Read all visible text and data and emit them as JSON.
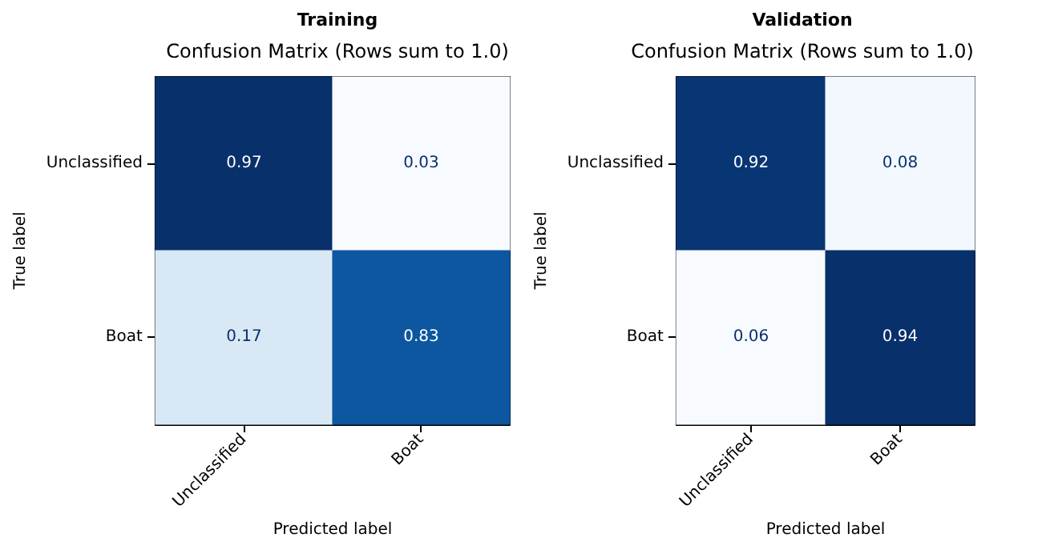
{
  "chart_data": [
    {
      "type": "heatmap",
      "title": "Training",
      "subtitle": "Confusion Matrix (Rows sum to 1.0)",
      "xlabel": "Predicted label",
      "ylabel": "True label",
      "categories": [
        "Unclassified",
        "Boat"
      ],
      "y_categories": [
        "Unclassified",
        "Boat"
      ],
      "cells": [
        [
          0.97,
          0.03
        ],
        [
          0.17,
          0.83
        ]
      ],
      "data_labels": true
    },
    {
      "type": "heatmap",
      "title": "Validation",
      "subtitle": "Confusion Matrix (Rows sum to 1.0)",
      "xlabel": "Predicted label",
      "ylabel": "True label",
      "categories": [
        "Unclassified",
        "Boat"
      ],
      "y_categories": [
        "Unclassified",
        "Boat"
      ],
      "cells": [
        [
          0.92,
          0.08
        ],
        [
          0.06,
          0.94
        ]
      ],
      "data_labels": true
    }
  ]
}
